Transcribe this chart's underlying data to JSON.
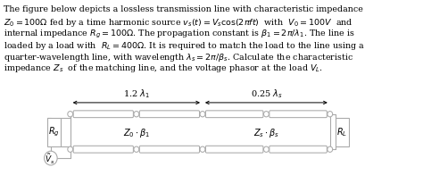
{
  "text_lines": [
    "The figure below depicts a lossless transmission line with characteristic impedance",
    "$Z_0=100\\Omega$ fed by a time harmonic source $v_s(t)=V_s\\cos(2\\pi ft)$  with  $V_0=100V$  and",
    "internal impedance $R_g=100\\Omega$. The propagation constant is $\\beta_1=2\\pi/\\lambda_1$. The line is",
    "loaded by a load with  $R_L=400\\Omega$. It is required to match the load to the line using a",
    "quarter-wavelength line, with wavelength $\\lambda_s=2\\pi/\\beta_s$. Calculate the characteristic",
    "impedance $Z_s$  of the matching line, and the voltage phasor at the load $V_L$."
  ],
  "arrow1_label": "1.2 $\\lambda_1$",
  "arrow2_label": "0.25 $\\lambda_s$",
  "label_Z0": "$Z_0\\cdot\\beta_1$",
  "label_Zs": "$Z_s\\cdot\\beta_s$",
  "label_Rg": "$R_g$",
  "label_RL": "$R_L$",
  "label_Vs": "$\\tilde{V}_s$",
  "bg_color": "#ffffff",
  "line_color": "#aaaaaa",
  "text_color": "#000000",
  "font_size_text": 6.8,
  "font_size_diag": 7.0
}
